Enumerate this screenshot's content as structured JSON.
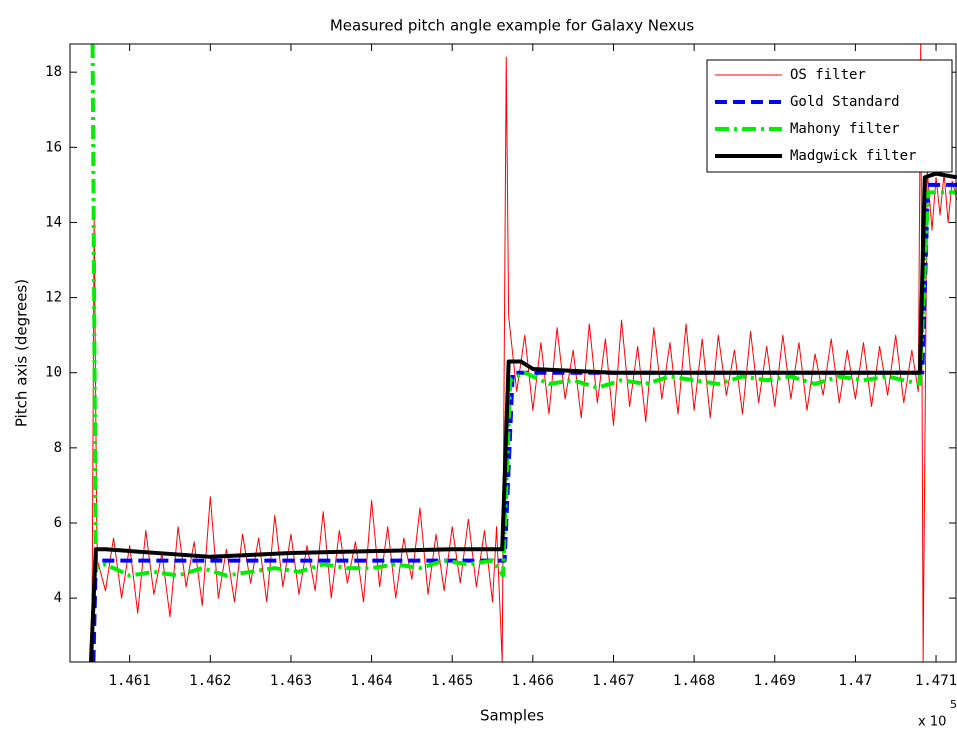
{
  "chart_data": {
    "type": "line",
    "title": "Measured pitch angle example for Galaxy Nexus",
    "x_label": "Samples",
    "y_label": "Pitch axis (degrees)",
    "x_multiplier": "x 10",
    "x_multiplier_exp": "5",
    "xlim": [
      1.46026,
      1.47126
    ],
    "ylim": [
      2.3,
      18.75
    ],
    "xticks": [
      1.461,
      1.462,
      1.463,
      1.464,
      1.465,
      1.466,
      1.467,
      1.468,
      1.469,
      1.47,
      1.471
    ],
    "yticks": [
      4,
      6,
      8,
      10,
      12,
      14,
      16,
      18
    ],
    "legend": "top-right",
    "series": [
      {
        "name": "OS filter",
        "color": "#ff0000",
        "linestyle": "-",
        "linewidth": 1,
        "x": [
          1.46053,
          1.46056,
          1.46059,
          1.4606,
          1.4607,
          1.4608,
          1.4609,
          1.461,
          1.4611,
          1.4612,
          1.4613,
          1.4614,
          1.4615,
          1.4616,
          1.4617,
          1.4618,
          1.4619,
          1.462,
          1.4621,
          1.4622,
          1.4623,
          1.4624,
          1.4625,
          1.4626,
          1.4627,
          1.4628,
          1.4629,
          1.463,
          1.4631,
          1.4632,
          1.4633,
          1.4634,
          1.4635,
          1.4636,
          1.4637,
          1.4638,
          1.4639,
          1.464,
          1.4641,
          1.4642,
          1.4643,
          1.4644,
          1.4645,
          1.4646,
          1.4647,
          1.4648,
          1.4649,
          1.465,
          1.4651,
          1.4652,
          1.4653,
          1.4654,
          1.4655,
          1.46555,
          1.46562,
          1.46567,
          1.4657,
          1.4658,
          1.4659,
          1.466,
          1.4661,
          1.4662,
          1.4663,
          1.4664,
          1.4665,
          1.4666,
          1.4667,
          1.4668,
          1.4669,
          1.467,
          1.4671,
          1.4672,
          1.4673,
          1.4674,
          1.4675,
          1.4676,
          1.4677,
          1.4678,
          1.4679,
          1.468,
          1.4681,
          1.4682,
          1.4683,
          1.4684,
          1.4685,
          1.4686,
          1.4687,
          1.4688,
          1.4689,
          1.469,
          1.4691,
          1.4692,
          1.4693,
          1.4694,
          1.4695,
          1.4696,
          1.4697,
          1.4698,
          1.4699,
          1.47,
          1.4701,
          1.4702,
          1.4703,
          1.4704,
          1.4705,
          1.4706,
          1.4707,
          1.47078,
          1.47081,
          1.47084,
          1.47089,
          1.47095,
          1.471,
          1.47105,
          1.4711,
          1.47115,
          1.4712,
          1.47126
        ],
        "values": [
          2.3,
          14.1,
          6.2,
          5.0,
          4.2,
          5.6,
          4.0,
          5.4,
          3.6,
          5.8,
          4.1,
          5.2,
          3.5,
          5.9,
          4.3,
          5.5,
          3.8,
          6.7,
          4.0,
          5.3,
          3.9,
          5.7,
          4.4,
          5.6,
          3.9,
          6.2,
          4.3,
          5.7,
          4.1,
          5.4,
          4.2,
          6.3,
          4.0,
          5.8,
          4.4,
          5.5,
          3.9,
          6.6,
          4.3,
          5.9,
          4.0,
          5.6,
          4.5,
          6.4,
          4.1,
          5.7,
          4.2,
          5.9,
          4.4,
          6.1,
          4.3,
          5.8,
          3.9,
          5.9,
          2.3,
          18.4,
          11.5,
          9.5,
          11.0,
          9.0,
          10.8,
          8.9,
          11.2,
          9.3,
          10.6,
          8.8,
          11.3,
          9.2,
          10.9,
          8.6,
          11.4,
          9.1,
          10.7,
          8.7,
          11.2,
          9.3,
          10.8,
          8.9,
          11.3,
          9.0,
          10.9,
          8.8,
          11.0,
          9.4,
          10.6,
          8.9,
          11.1,
          9.2,
          10.7,
          9.1,
          11.0,
          9.3,
          10.8,
          9.0,
          10.5,
          9.4,
          10.9,
          9.2,
          10.6,
          9.3,
          10.8,
          9.1,
          10.7,
          9.4,
          11.0,
          9.2,
          10.6,
          9.5,
          18.75,
          2.3,
          15.4,
          13.8,
          15.2,
          14.2,
          15.3,
          14.0,
          15.1,
          14.6
        ]
      },
      {
        "name": "Gold Standard",
        "color": "#0000ff",
        "linestyle": "--",
        "linewidth": 4,
        "x": [
          1.46055,
          1.46058,
          1.46565,
          1.46575,
          1.47083,
          1.4709,
          1.47126
        ],
        "values": [
          2.3,
          5.0,
          5.0,
          10.0,
          10.0,
          15.0,
          15.0
        ]
      },
      {
        "name": "Mahony filter",
        "color": "#00ee00",
        "linestyle": "-.",
        "linewidth": 4,
        "x": [
          1.46054,
          1.46058,
          1.4607,
          1.461,
          1.4613,
          1.4616,
          1.4619,
          1.4622,
          1.4625,
          1.4628,
          1.4631,
          1.4634,
          1.4637,
          1.464,
          1.4643,
          1.4646,
          1.4649,
          1.4652,
          1.4655,
          1.46563,
          1.46572,
          1.4659,
          1.4662,
          1.4665,
          1.4668,
          1.4671,
          1.4674,
          1.4677,
          1.468,
          1.4683,
          1.4686,
          1.4689,
          1.4692,
          1.4695,
          1.4698,
          1.4701,
          1.4704,
          1.4708,
          1.4709,
          1.47126
        ],
        "values": [
          18.75,
          4.8,
          4.9,
          4.6,
          4.7,
          4.6,
          4.8,
          4.6,
          4.7,
          4.8,
          4.7,
          4.9,
          4.8,
          4.8,
          4.9,
          4.8,
          5.0,
          4.9,
          5.0,
          4.6,
          9.8,
          10.0,
          9.7,
          9.8,
          9.6,
          9.8,
          9.7,
          9.9,
          9.8,
          9.7,
          9.9,
          9.8,
          9.9,
          9.7,
          9.9,
          9.8,
          9.9,
          9.7,
          14.8,
          14.8
        ]
      },
      {
        "name": "Madgwick filter",
        "color": "#000000",
        "linestyle": "-",
        "linewidth": 4,
        "x": [
          1.46052,
          1.46058,
          1.4607,
          1.462,
          1.463,
          1.465,
          1.46562,
          1.4657,
          1.46585,
          1.466,
          1.467,
          1.468,
          1.4708,
          1.47086,
          1.471,
          1.47126
        ],
        "values": [
          2.3,
          5.3,
          5.3,
          5.1,
          5.2,
          5.3,
          5.3,
          10.3,
          10.3,
          10.1,
          10.0,
          10.0,
          10.0,
          15.2,
          15.3,
          15.2
        ]
      }
    ]
  }
}
